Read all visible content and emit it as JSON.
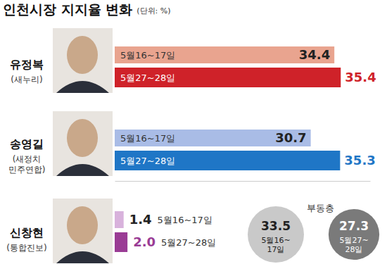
{
  "chart_data": {
    "type": "bar",
    "orientation": "horizontal",
    "title": "인천시장 지지율 변화",
    "subtitle": "(단위: %)",
    "categories": [
      "유정복",
      "송영길",
      "신창현"
    ],
    "parties": [
      "(새누리)",
      "(새정치 민주연합)",
      "(통합진보)"
    ],
    "series": [
      {
        "name": "5월16~17일",
        "colors": [
          "#e9a48f",
          "#a9bce6",
          "#d8b2dc"
        ],
        "values": [
          34.4,
          30.7,
          1.4
        ]
      },
      {
        "name": "5월27~28일",
        "colors": [
          "#cf2229",
          "#1f76c6",
          "#9a3c95"
        ],
        "values": [
          35.4,
          35.3,
          2.0
        ],
        "value_labels": [
          "35.4",
          "35.3",
          "2.0"
        ]
      }
    ],
    "undecided": {
      "label": "부동층",
      "values": [
        33.5,
        27.3
      ],
      "colors": [
        "#c9c9c9",
        "#7a7a7a"
      ]
    },
    "xlim": [
      0,
      40
    ],
    "xticks": [],
    "tick_labels": false,
    "data_labels": true,
    "grid": false
  }
}
